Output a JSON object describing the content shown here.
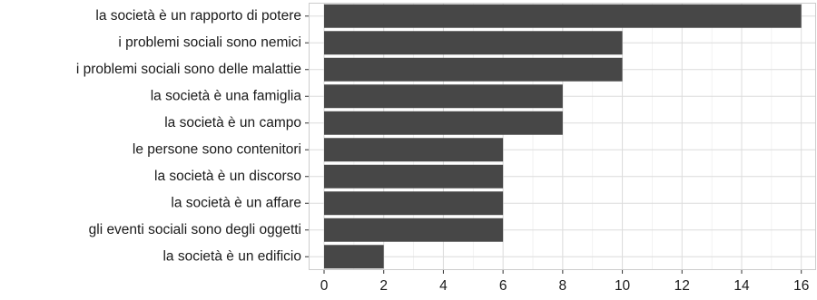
{
  "chart_data": {
    "type": "bar",
    "orientation": "horizontal",
    "categories": [
      "la società è un rapporto di potere",
      "i problemi sociali sono nemici",
      "i problemi sociali sono delle malattie",
      "la società è una famiglia",
      "la società è un campo",
      "le persone sono contenitori",
      "la società è un discorso",
      "la società è un affare",
      "gli eventi sociali sono degli oggetti",
      "la società è un edificio"
    ],
    "values": [
      16,
      10,
      10,
      8,
      8,
      6,
      6,
      6,
      6,
      2
    ],
    "xlim": [
      0,
      16.5
    ],
    "xticks": [
      0,
      2,
      4,
      6,
      8,
      10,
      12,
      14,
      16
    ],
    "title": "",
    "xlabel": "",
    "ylabel": "",
    "grid": true,
    "legend": "none",
    "colors": {
      "bar": "#474747",
      "panel_border": "#cccccc",
      "grid_major": "#dcdcdc",
      "grid_minor": "#efefef",
      "text": "#1a1a1a"
    }
  }
}
